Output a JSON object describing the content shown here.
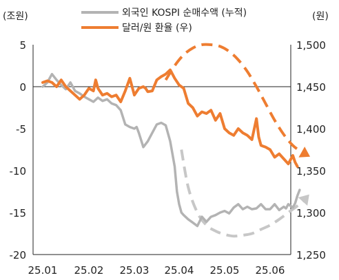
{
  "chart_data": {
    "type": "line",
    "left_axis": {
      "unit": "(조원)",
      "ticks": [
        "5",
        "0",
        "-5",
        "-10",
        "-15",
        "-20"
      ],
      "tick_values": [
        5,
        0,
        -5,
        -10,
        -15,
        -20
      ],
      "ylim": [
        -20,
        5
      ]
    },
    "right_axis": {
      "unit": "(원)",
      "ticks": [
        "1,500",
        "1,450",
        "1,400",
        "1,350",
        "1,300",
        "1,250"
      ],
      "tick_values": [
        1500,
        1450,
        1400,
        1350,
        1300,
        1250
      ],
      "ylim": [
        1250,
        1500
      ]
    },
    "x_axis": {
      "ticks": [
        "25.01",
        "25.02",
        "25.03",
        "25.04",
        "25.05",
        "25.06"
      ]
    },
    "legend": [
      {
        "label": "외국인 KOSPI 순매수액 (누적)",
        "color": "#b3b3b3"
      },
      {
        "label": "달러/원 환율 (우)",
        "color": "#ee7d31"
      }
    ],
    "series": [
      {
        "name": "외국인 KOSPI 순매수액 (누적)",
        "axis": "left",
        "color": "#b3b3b3",
        "x": [
          0.0,
          0.1,
          0.2,
          0.3,
          0.4,
          0.5,
          0.6,
          0.7,
          0.8,
          0.9,
          1.0,
          1.1,
          1.2,
          1.3,
          1.4,
          1.5,
          1.6,
          1.7,
          1.8,
          1.9,
          2.0,
          2.05,
          2.1,
          2.2,
          2.3,
          2.4,
          2.5,
          2.6,
          2.7,
          2.8,
          2.9,
          2.95,
          3.0,
          3.05,
          3.1,
          3.2,
          3.3,
          3.4,
          3.5,
          3.6,
          3.7,
          3.8,
          3.9,
          4.0,
          4.1,
          4.2,
          4.3,
          4.4,
          4.5,
          4.6,
          4.7,
          4.8,
          4.9,
          5.0,
          5.1,
          5.2,
          5.3,
          5.35,
          5.4,
          5.5,
          5.55,
          5.6,
          5.65
        ],
        "values": [
          0.0,
          0.5,
          1.5,
          0.8,
          0.2,
          -0.3,
          0.5,
          -0.5,
          -0.8,
          -1.2,
          -1.5,
          -1.8,
          -1.3,
          -1.7,
          -1.5,
          -2.0,
          -2.2,
          -2.8,
          -4.5,
          -4.8,
          -5.0,
          -4.8,
          -5.5,
          -7.2,
          -6.5,
          -5.5,
          -4.5,
          -4.3,
          -4.6,
          -6.5,
          -9.5,
          -12.5,
          -14.0,
          -15.0,
          -15.3,
          -15.8,
          -16.2,
          -16.6,
          -15.5,
          -16.1,
          -15.5,
          -15.3,
          -15.0,
          -14.8,
          -15.1,
          -14.4,
          -14.0,
          -14.6,
          -14.3,
          -14.6,
          -14.5,
          -14.0,
          -14.6,
          -14.6,
          -14.0,
          -14.7,
          -14.3,
          -14.5,
          -14.0,
          -14.4,
          -13.9,
          -13.0,
          -12.3
        ]
      },
      {
        "name": "달러/원 환율 (우)",
        "axis": "right",
        "color": "#ee7d31",
        "x": [
          0.0,
          0.1,
          0.2,
          0.3,
          0.4,
          0.5,
          0.6,
          0.7,
          0.8,
          0.9,
          1.0,
          1.1,
          1.15,
          1.2,
          1.3,
          1.4,
          1.5,
          1.6,
          1.7,
          1.8,
          1.9,
          2.0,
          2.1,
          2.2,
          2.25,
          2.3,
          2.4,
          2.5,
          2.6,
          2.7,
          2.8,
          2.9,
          3.0,
          3.1,
          3.2,
          3.3,
          3.4,
          3.5,
          3.6,
          3.7,
          3.8,
          3.9,
          4.0,
          4.1,
          4.2,
          4.3,
          4.4,
          4.5,
          4.6,
          4.7,
          4.75,
          4.8,
          4.9,
          5.0,
          5.1,
          5.2,
          5.3,
          5.4,
          5.5,
          5.55,
          5.6
        ],
        "values": [
          1455,
          1457,
          1455,
          1450,
          1458,
          1450,
          1445,
          1440,
          1435,
          1440,
          1448,
          1445,
          1458,
          1448,
          1440,
          1442,
          1438,
          1440,
          1432,
          1445,
          1460,
          1440,
          1448,
          1450,
          1448,
          1444,
          1445,
          1458,
          1462,
          1465,
          1470,
          1460,
          1452,
          1448,
          1430,
          1425,
          1415,
          1420,
          1418,
          1422,
          1410,
          1418,
          1400,
          1395,
          1392,
          1400,
          1395,
          1392,
          1387,
          1412,
          1390,
          1380,
          1378,
          1375,
          1366,
          1370,
          1364,
          1358,
          1368,
          1360,
          1355
        ]
      }
    ],
    "projections": [
      {
        "axis": "left",
        "color": "#c7c7c7",
        "x": [
          3.05,
          3.2,
          3.4,
          3.6,
          3.8,
          4.0,
          4.2,
          4.4,
          4.6,
          4.8,
          5.0,
          5.2,
          5.4,
          5.6,
          5.75,
          5.8
        ],
        "values": [
          -7.5,
          -12.0,
          -15.0,
          -16.5,
          -17.2,
          -17.6,
          -17.8,
          -17.7,
          -17.5,
          -17.0,
          -16.5,
          -15.8,
          -15.0,
          -14.2,
          -13.5,
          -13.2
        ]
      },
      {
        "axis": "right",
        "color": "#ee7d31",
        "x": [
          2.7,
          2.9,
          3.1,
          3.3,
          3.5,
          3.7,
          3.9,
          4.1,
          4.3,
          4.5,
          4.7,
          4.9,
          5.1,
          5.3,
          5.5,
          5.7,
          5.8
        ],
        "values": [
          1458,
          1475,
          1488,
          1496,
          1500,
          1500,
          1498,
          1492,
          1482,
          1468,
          1450,
          1430,
          1410,
          1393,
          1380,
          1372,
          1369
        ]
      }
    ]
  }
}
